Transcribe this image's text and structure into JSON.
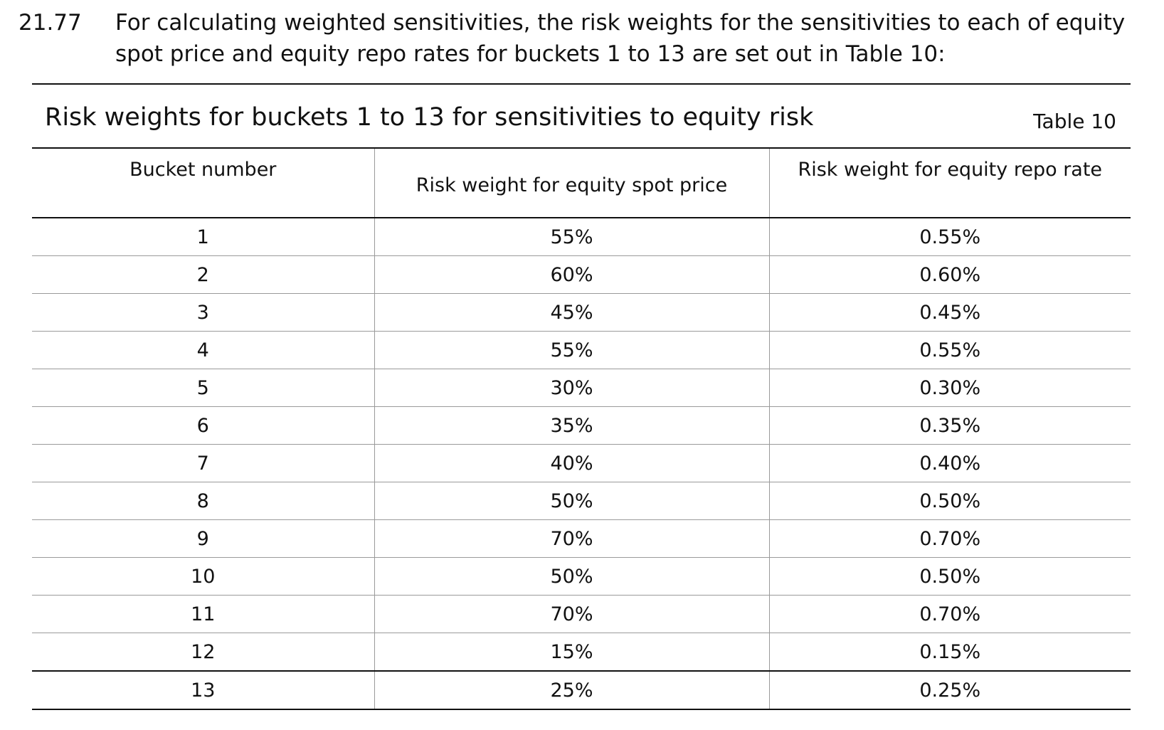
{
  "paragraph": {
    "number": "21.77",
    "text": "For calculating weighted sensitivities, the risk weights for the sensitivities to each of equity spot price and equity repo rates for buckets 1 to 13 are set out in Table 10:"
  },
  "table": {
    "title": "Risk weights for buckets 1 to 13 for sensitivities to equity risk",
    "tag": "Table 10",
    "headers": {
      "bucket": "Bucket number",
      "spot": "Risk weight for equity spot price",
      "repo": "Risk weight for equity repo rate"
    },
    "rows": [
      {
        "bucket": "1",
        "spot": "55%",
        "repo": "0.55%"
      },
      {
        "bucket": "2",
        "spot": "60%",
        "repo": "0.60%"
      },
      {
        "bucket": "3",
        "spot": "45%",
        "repo": "0.45%"
      },
      {
        "bucket": "4",
        "spot": "55%",
        "repo": "0.55%"
      },
      {
        "bucket": "5",
        "spot": "30%",
        "repo": "0.30%"
      },
      {
        "bucket": "6",
        "spot": "35%",
        "repo": "0.35%"
      },
      {
        "bucket": "7",
        "spot": "40%",
        "repo": "0.40%"
      },
      {
        "bucket": "8",
        "spot": "50%",
        "repo": "0.50%"
      },
      {
        "bucket": "9",
        "spot": "70%",
        "repo": "0.70%"
      },
      {
        "bucket": "10",
        "spot": "50%",
        "repo": "0.50%"
      },
      {
        "bucket": "11",
        "spot": "70%",
        "repo": "0.70%"
      },
      {
        "bucket": "12",
        "spot": "15%",
        "repo": "0.15%"
      },
      {
        "bucket": "13",
        "spot": "25%",
        "repo": "0.25%"
      }
    ]
  }
}
